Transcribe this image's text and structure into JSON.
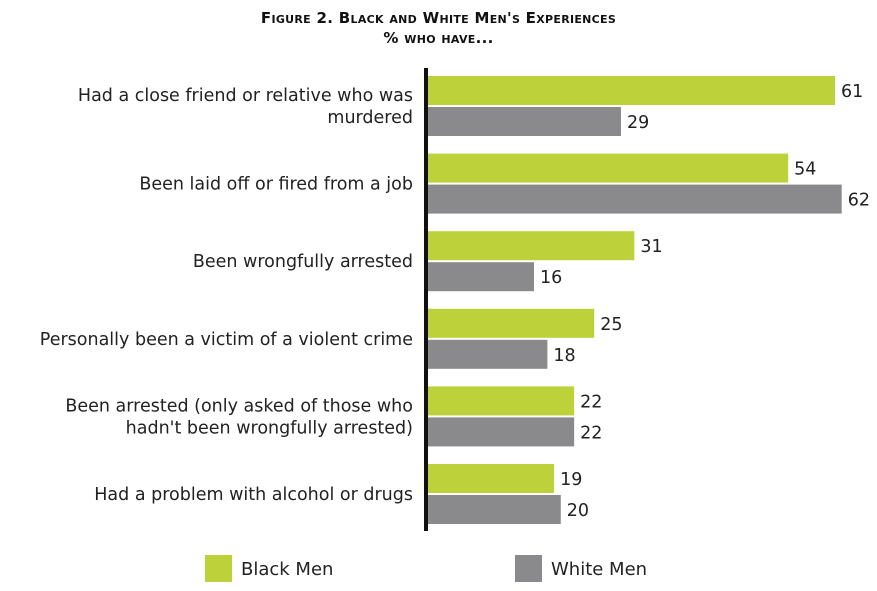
{
  "chart_data": {
    "type": "bar",
    "orientation": "horizontal",
    "title": "Figure 2. Black and White Men's Experiences",
    "subtitle": "% who have...",
    "categories": [
      [
        "Had a close friend or relative who was",
        "murdered"
      ],
      [
        "Been laid off or fired from a job"
      ],
      [
        "Been wrongfully arrested"
      ],
      [
        "Personally been a victim of a violent crime"
      ],
      [
        "Been arrested (only asked of those who",
        "hadn't been wrongfully arrested)"
      ],
      [
        "Had a problem with alcohol or drugs"
      ]
    ],
    "series": [
      {
        "name": "Black Men",
        "color": "#bdd23a",
        "values": [
          61,
          54,
          31,
          25,
          22,
          19
        ]
      },
      {
        "name": "White Men",
        "color": "#8a8a8d",
        "values": [
          29,
          62,
          16,
          18,
          22,
          20
        ]
      }
    ],
    "xlim": [
      0,
      62
    ],
    "grid": false,
    "legend": "bottom"
  }
}
